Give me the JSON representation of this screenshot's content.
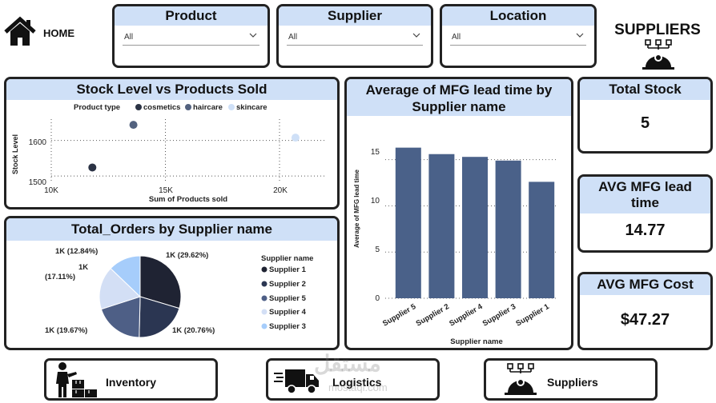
{
  "header": {
    "home_label": "HOME",
    "page_title": "SUPPLIERS"
  },
  "filters": [
    {
      "label": "Product",
      "value": "All"
    },
    {
      "label": "Supplier",
      "value": "All"
    },
    {
      "label": "Location",
      "value": "All"
    }
  ],
  "scatter": {
    "title": "Stock Level vs Products Sold",
    "legend_title": "Product type",
    "legend": [
      "cosmetics",
      "haircare",
      "skincare"
    ],
    "xlabel": "Sum of Products sold",
    "ylabel": "Stock Level",
    "xticks": [
      "10K",
      "15K",
      "20K"
    ],
    "yticks": [
      "1600",
      "1500"
    ]
  },
  "pie": {
    "title": "Total_Orders by Supplier name",
    "legend_title": "Supplier name",
    "legend": [
      "Supplier 1",
      "Supplier 2",
      "Supplier 5",
      "Supplier 4",
      "Supplier 3"
    ],
    "labels": [
      "1K (29.62%)",
      "1K (20.76%)",
      "1K (19.67%)",
      "1K",
      "(17.11%)",
      "1K (12.84%)"
    ]
  },
  "bar": {
    "title": "Average of MFG lead time by Supplier name",
    "xlabel": "Supplier name",
    "ylabel": "Average of MFG lead time",
    "yticks": [
      "15",
      "10",
      "5",
      "0"
    ]
  },
  "kpis": [
    {
      "label": "Total Stock",
      "value": "5"
    },
    {
      "label": "AVG MFG lead time",
      "value": "14.77"
    },
    {
      "label": "AVG MFG Cost",
      "value": "$47.27"
    }
  ],
  "nav": [
    {
      "label": "Inventory"
    },
    {
      "label": "Logistics"
    },
    {
      "label": "Suppliers"
    }
  ],
  "watermark": {
    "arabic": "مستقل",
    "latin": "mostaql.com"
  },
  "colors": {
    "header_band": "#cfe0f7",
    "bar": "#4a6189",
    "cosmetics": "#2b3345",
    "haircare": "#53627f",
    "skincare": "#cfe0f7",
    "supplier1": "#1f2333",
    "supplier2": "#2b3652",
    "supplier5": "#4e5f86",
    "supplier4": "#d3dff5",
    "supplier3": "#a6cdfb"
  },
  "chart_data": [
    {
      "type": "scatter",
      "title": "Stock Level vs Products Sold",
      "xlabel": "Sum of Products sold",
      "ylabel": "Stock Level",
      "xlim": [
        10000,
        22000
      ],
      "ylim": [
        1480,
        1660
      ],
      "series": [
        {
          "name": "cosmetics",
          "x": [
            11800
          ],
          "y": [
            1524
          ]
        },
        {
          "name": "haircare",
          "x": [
            13600
          ],
          "y": [
            1644
          ]
        },
        {
          "name": "skincare",
          "x": [
            20700
          ],
          "y": [
            1608
          ]
        }
      ],
      "legend_position": "top"
    },
    {
      "type": "pie",
      "title": "Total_Orders by Supplier name",
      "categories": [
        "Supplier 1",
        "Supplier 2",
        "Supplier 5",
        "Supplier 4",
        "Supplier 3"
      ],
      "values": [
        29.62,
        20.76,
        19.67,
        17.11,
        12.84
      ],
      "legend_position": "right"
    },
    {
      "type": "bar",
      "title": "Average of MFG lead time by Supplier name",
      "xlabel": "Supplier name",
      "ylabel": "Average of MFG lead time",
      "categories": [
        "Supplier 5",
        "Supplier 2",
        "Supplier 4",
        "Supplier 3",
        "Supplier 1"
      ],
      "values": [
        16.3,
        15.6,
        15.3,
        14.9,
        12.6
      ],
      "ylim": [
        0,
        18
      ]
    }
  ]
}
